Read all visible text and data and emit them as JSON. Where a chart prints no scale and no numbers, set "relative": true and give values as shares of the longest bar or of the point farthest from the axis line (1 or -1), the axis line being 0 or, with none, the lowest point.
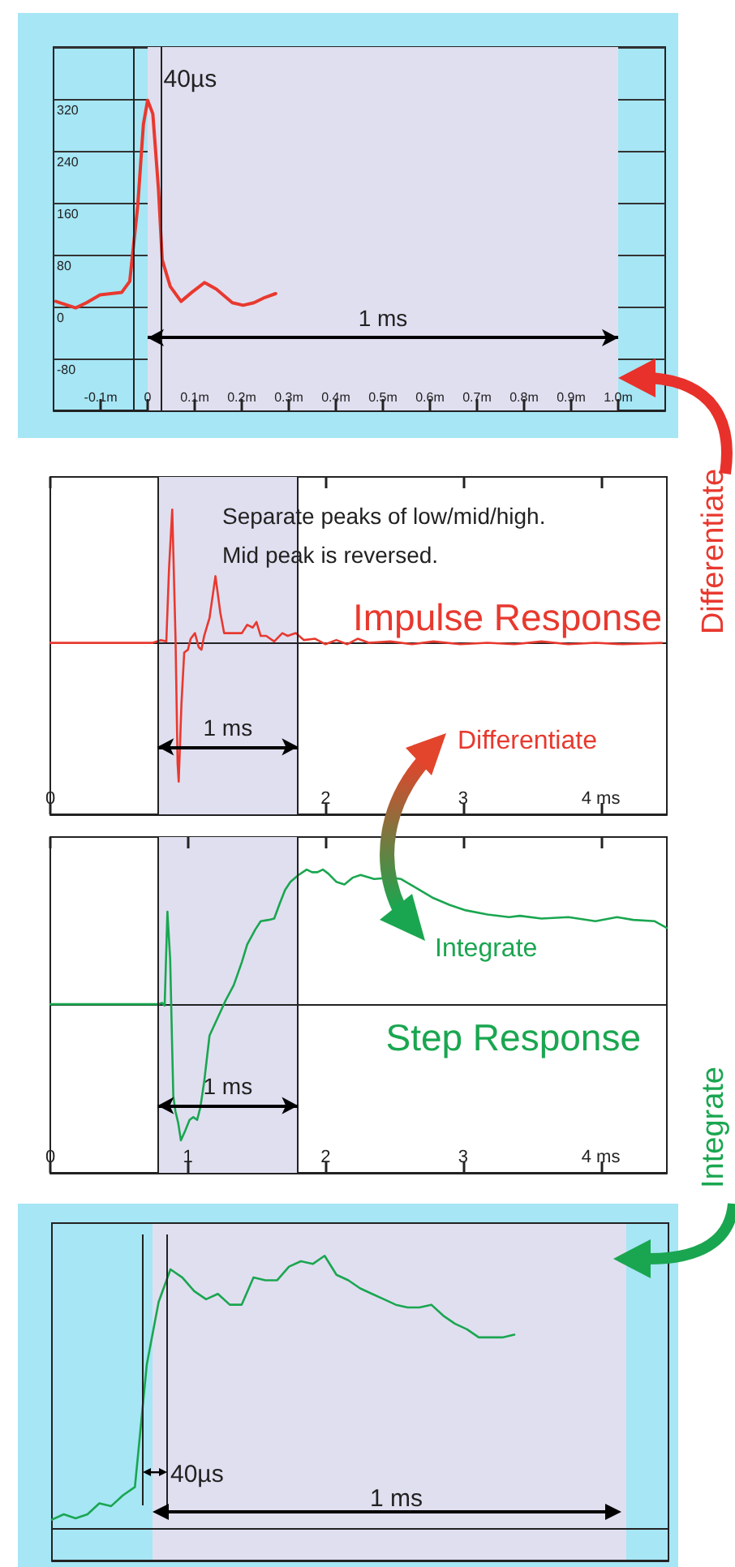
{
  "chart_data": [
    {
      "type": "line",
      "color": "#e8392f",
      "x": [
        -0.195,
        -0.153,
        -0.13,
        -0.101,
        -0.055,
        -0.038,
        -0.021,
        -0.009,
        0,
        0.011,
        0.023,
        0.031,
        0.048,
        0.071,
        0.094,
        0.121,
        0.146,
        0.18,
        0.203,
        0.226,
        0.249,
        0.272
      ],
      "values": [
        8,
        -2,
        6,
        18,
        22,
        39,
        156,
        281,
        318,
        297,
        181,
        72,
        31,
        8,
        22,
        37,
        27,
        6,
        2,
        6,
        14,
        20
      ],
      "xlim": [
        -0.2,
        1.1
      ],
      "ylim": [
        -160,
        400
      ],
      "xticks": [
        {
          "value": -0.1,
          "label": "-0.1m"
        },
        0,
        {
          "value": 0.1,
          "label": "0.1m"
        },
        {
          "value": 0.2,
          "label": "0.2m"
        },
        {
          "value": 0.3,
          "label": "0.3m"
        },
        {
          "value": 0.4,
          "label": "0.4m"
        },
        {
          "value": 0.5,
          "label": "0.5m"
        },
        {
          "value": 0.6,
          "label": "0.6m"
        },
        {
          "value": 0.7,
          "label": "0.7m"
        },
        {
          "value": 0.8,
          "label": "0.8m"
        },
        {
          "value": 0.9,
          "label": "0.9m"
        },
        {
          "value": 1.0,
          "label": "1.0m"
        }
      ],
      "yticks": [
        -80,
        0,
        80,
        160,
        240,
        320
      ],
      "grid": "y",
      "ref_lines": [
        {
          "axis": "x",
          "value": -0.03
        },
        {
          "axis": "x",
          "value": 0.025
        }
      ],
      "bands": [
        {
          "axis": "x",
          "from": 0,
          "to": 1.0,
          "label": "1 ms",
          "color": "#e0dff0"
        }
      ],
      "annotations": [
        {
          "text": "40µs",
          "x": 0.025,
          "y": 350
        }
      ]
    },
    {
      "type": "line",
      "relative": true,
      "tick_labels": "x",
      "x": [
        0,
        0.745,
        0.804,
        0.843,
        0.863,
        0.886,
        0.91,
        0.925,
        0.933,
        0.953,
        0.973,
        1.0,
        1.02,
        1.051,
        1.078,
        1.098,
        1.118,
        1.157,
        1.2,
        1.235,
        1.263,
        1.333,
        1.392,
        1.431,
        1.471,
        1.498,
        1.529,
        1.569,
        1.627,
        1.686,
        1.725,
        1.784,
        1.843,
        1.922,
        2.0,
        2.078,
        2.157,
        2.235,
        2.314,
        2.471,
        2.627,
        2.784,
        2.98,
        3.176,
        3.373,
        3.569,
        3.765,
        3.961,
        4.157,
        4.443
      ],
      "series": [
        {
          "name": "Impulse Response",
          "color": "#e8392f",
          "values": [
            0,
            0,
            0.02,
            0.01,
            0.54,
            0.96,
            0.03,
            -0.87,
            -1,
            -0.44,
            -0.07,
            -0.05,
            0.03,
            0.07,
            -0.03,
            -0.05,
            0.05,
            0.18,
            0.48,
            0.22,
            0.07,
            0.07,
            0.07,
            0.13,
            0.11,
            0.15,
            0.05,
            0.05,
            0.01,
            0.07,
            0.05,
            0.07,
            0.02,
            0.03,
            -0.01,
            0.02,
            -0.01,
            0.03,
            0,
            0.01,
            -0.01,
            0.01,
            -0.01,
            0,
            -0.01,
            0.01,
            -0.01,
            0,
            -0.01,
            0
          ]
        }
      ],
      "xlim": [
        0,
        4.48
      ],
      "xticks": [
        0,
        2,
        3,
        {
          "value": 4,
          "label": "4 ms"
        }
      ],
      "ref_lines": [
        {
          "axis": "x",
          "value": 0.78
        },
        {
          "axis": "x",
          "value": 1.8
        }
      ],
      "bands": [
        {
          "axis": "x",
          "from": 0.78,
          "to": 1.8,
          "label": "1 ms",
          "color": "#e0dff0"
        }
      ],
      "annotations": [
        "Separate peaks of low/mid/high.",
        "Mid peak is reversed.",
        "Differentiate",
        "Differentiate"
      ]
    },
    {
      "type": "line",
      "relative": true,
      "tick_labels": "x",
      "x": [
        0,
        0.784,
        0.812,
        0.831,
        0.851,
        0.871,
        0.886,
        0.894,
        0.91,
        0.929,
        0.949,
        0.98,
        1.012,
        1.039,
        1.067,
        1.09,
        1.118,
        1.157,
        1.216,
        1.275,
        1.333,
        1.392,
        1.431,
        1.49,
        1.529,
        1.588,
        1.627,
        1.667,
        1.706,
        1.745,
        1.804,
        1.863,
        1.902,
        1.941,
        1.98,
        2.02,
        2.078,
        2.137,
        2.196,
        2.255,
        2.353,
        2.471,
        2.549,
        2.667,
        2.784,
        2.902,
        3.02,
        3.176,
        3.333,
        3.412,
        3.569,
        3.765,
        3.961,
        4.118,
        4.235,
        4.392,
        4.48
      ],
      "series": [
        {
          "name": "Step Response",
          "color": "#1aa650",
          "values": [
            0,
            0,
            0.01,
            -0.01,
            0.68,
            0.33,
            -0.34,
            -0.68,
            -0.79,
            -0.87,
            -1,
            -0.93,
            -0.85,
            -0.83,
            -0.85,
            -0.76,
            -0.57,
            -0.23,
            -0.1,
            0.03,
            0.14,
            0.31,
            0.44,
            0.55,
            0.61,
            0.62,
            0.63,
            0.74,
            0.84,
            0.9,
            0.95,
            0.99,
            0.97,
            0.97,
            0.99,
            0.96,
            0.9,
            0.88,
            0.93,
            0.95,
            0.92,
            0.93,
            0.92,
            0.85,
            0.78,
            0.73,
            0.69,
            0.66,
            0.64,
            0.65,
            0.63,
            0.64,
            0.61,
            0.64,
            0.62,
            0.61,
            0.56
          ]
        }
      ],
      "xlim": [
        0,
        4.48
      ],
      "xticks": [
        0,
        1,
        2,
        3,
        {
          "value": 4,
          "label": "4 ms"
        }
      ],
      "ref_lines": [
        {
          "axis": "x",
          "value": 0.78
        },
        {
          "axis": "x",
          "value": 1.8
        }
      ],
      "bands": [
        {
          "axis": "x",
          "from": 0.78,
          "to": 1.8,
          "label": "1 ms",
          "color": "#e0dff0"
        }
      ],
      "annotations": [
        "Integrate",
        "Integrate"
      ]
    },
    {
      "type": "line",
      "relative": true,
      "tick_labels": false,
      "color": "#1aa650",
      "categories": [
        null,
        null,
        null,
        null,
        null,
        null,
        null,
        null,
        null,
        null,
        null,
        null,
        null,
        null,
        null,
        null,
        null,
        null,
        null,
        null,
        null,
        null,
        null,
        null,
        null,
        null,
        null,
        null,
        null,
        null,
        null,
        null,
        null,
        null,
        null,
        null,
        null,
        null,
        null,
        null,
        null,
        null,
        null,
        null,
        null,
        null,
        null,
        null,
        null,
        null,
        null,
        null,
        null
      ],
      "values": [
        0.03,
        0.05,
        0.035,
        0.05,
        0.09,
        0.08,
        0.12,
        0.15,
        0.6,
        0.83,
        0.95,
        0.92,
        0.87,
        0.84,
        0.86,
        0.82,
        0.82,
        0.92,
        0.91,
        0.91,
        0.96,
        0.98,
        0.97,
        1.0,
        0.93,
        0.91,
        0.88,
        0.86,
        0.84,
        0.82,
        0.81,
        0.81,
        0.82,
        0.78,
        0.75,
        0.73,
        0.7,
        0.7,
        0.7,
        0.71,
        null,
        null,
        null,
        null,
        null,
        null,
        null,
        null,
        null,
        null,
        null,
        null,
        null
      ],
      "annotations": [
        "40µs",
        "1 ms"
      ]
    }
  ]
}
